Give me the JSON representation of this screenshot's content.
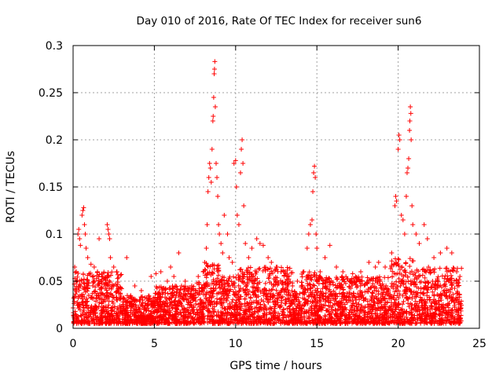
{
  "chart_data": {
    "type": "scatter",
    "title": "Day 010 of 2016, Rate Of TEC Index for receiver sun6",
    "xlabel": "GPS time / hours",
    "ylabel": "ROTI / TECUs",
    "xlim": [
      0,
      25
    ],
    "ylim": [
      0,
      0.3
    ],
    "xticks": [
      0,
      5,
      10,
      15,
      20,
      25
    ],
    "xtick_labels": [
      "0",
      "5",
      "10",
      "15",
      "20",
      "25"
    ],
    "yticks": [
      0,
      0.05,
      0.1,
      0.15,
      0.2,
      0.25,
      0.3
    ],
    "ytick_labels": [
      "0",
      "0.05",
      "0.1",
      "0.15",
      "0.2",
      "0.25",
      "0.3"
    ],
    "grid": true,
    "marker": "+",
    "color": "#ff0000",
    "series": [
      {
        "name": "ROTI",
        "points": [
          [
            0.1,
            0.065
          ],
          [
            0.2,
            0.06
          ],
          [
            0.3,
            0.1
          ],
          [
            0.35,
            0.105
          ],
          [
            0.4,
            0.095
          ],
          [
            0.45,
            0.088
          ],
          [
            0.55,
            0.12
          ],
          [
            0.6,
            0.125
          ],
          [
            0.65,
            0.128
          ],
          [
            0.7,
            0.11
          ],
          [
            0.75,
            0.1
          ],
          [
            0.8,
            0.085
          ],
          [
            0.9,
            0.075
          ],
          [
            1.1,
            0.068
          ],
          [
            1.3,
            0.065
          ],
          [
            1.5,
            0.06
          ],
          [
            1.6,
            0.095
          ],
          [
            1.8,
            0.055
          ],
          [
            2.1,
            0.11
          ],
          [
            2.15,
            0.105
          ],
          [
            2.2,
            0.1
          ],
          [
            2.25,
            0.095
          ],
          [
            2.3,
            0.075
          ],
          [
            2.5,
            0.065
          ],
          [
            2.7,
            0.06
          ],
          [
            3.3,
            0.075
          ],
          [
            3.8,
            0.045
          ],
          [
            4.2,
            0.04
          ],
          [
            4.8,
            0.055
          ],
          [
            5.1,
            0.058
          ],
          [
            5.4,
            0.06
          ],
          [
            5.8,
            0.05
          ],
          [
            6.0,
            0.065
          ],
          [
            6.2,
            0.055
          ],
          [
            6.5,
            0.08
          ],
          [
            6.9,
            0.05
          ],
          [
            7.3,
            0.045
          ],
          [
            7.7,
            0.055
          ],
          [
            8.0,
            0.06
          ],
          [
            8.1,
            0.07
          ],
          [
            8.2,
            0.085
          ],
          [
            8.25,
            0.11
          ],
          [
            8.3,
            0.145
          ],
          [
            8.35,
            0.16
          ],
          [
            8.4,
            0.175
          ],
          [
            8.45,
            0.17
          ],
          [
            8.5,
            0.155
          ],
          [
            8.55,
            0.19
          ],
          [
            8.6,
            0.22
          ],
          [
            8.62,
            0.225
          ],
          [
            8.65,
            0.245
          ],
          [
            8.68,
            0.27
          ],
          [
            8.7,
            0.275
          ],
          [
            8.72,
            0.283
          ],
          [
            8.75,
            0.235
          ],
          [
            8.8,
            0.175
          ],
          [
            8.85,
            0.16
          ],
          [
            8.9,
            0.14
          ],
          [
            8.95,
            0.11
          ],
          [
            9.0,
            0.1
          ],
          [
            9.1,
            0.09
          ],
          [
            9.2,
            0.08
          ],
          [
            9.3,
            0.12
          ],
          [
            9.5,
            0.1
          ],
          [
            9.6,
            0.075
          ],
          [
            9.8,
            0.07
          ],
          [
            9.9,
            0.175
          ],
          [
            10.0,
            0.178
          ],
          [
            10.05,
            0.15
          ],
          [
            10.1,
            0.12
          ],
          [
            10.2,
            0.11
          ],
          [
            10.3,
            0.165
          ],
          [
            10.35,
            0.19
          ],
          [
            10.4,
            0.2
          ],
          [
            10.45,
            0.175
          ],
          [
            10.5,
            0.13
          ],
          [
            10.6,
            0.09
          ],
          [
            10.8,
            0.075
          ],
          [
            11.0,
            0.085
          ],
          [
            11.3,
            0.095
          ],
          [
            11.5,
            0.09
          ],
          [
            11.7,
            0.088
          ],
          [
            12.0,
            0.075
          ],
          [
            12.2,
            0.07
          ],
          [
            12.5,
            0.065
          ],
          [
            12.8,
            0.06
          ],
          [
            13.2,
            0.055
          ],
          [
            13.5,
            0.045
          ],
          [
            13.8,
            0.05
          ],
          [
            14.2,
            0.06
          ],
          [
            14.4,
            0.085
          ],
          [
            14.5,
            0.1
          ],
          [
            14.6,
            0.11
          ],
          [
            14.7,
            0.115
          ],
          [
            14.75,
            0.145
          ],
          [
            14.8,
            0.165
          ],
          [
            14.85,
            0.172
          ],
          [
            14.9,
            0.16
          ],
          [
            14.95,
            0.1
          ],
          [
            15.0,
            0.085
          ],
          [
            15.2,
            0.06
          ],
          [
            15.5,
            0.075
          ],
          [
            15.8,
            0.088
          ],
          [
            16.2,
            0.065
          ],
          [
            16.6,
            0.06
          ],
          [
            17.2,
            0.058
          ],
          [
            17.7,
            0.06
          ],
          [
            18.2,
            0.07
          ],
          [
            18.6,
            0.065
          ],
          [
            18.8,
            0.07
          ],
          [
            19.2,
            0.065
          ],
          [
            19.6,
            0.08
          ],
          [
            19.8,
            0.13
          ],
          [
            19.85,
            0.14
          ],
          [
            19.9,
            0.135
          ],
          [
            20.0,
            0.19
          ],
          [
            20.05,
            0.205
          ],
          [
            20.1,
            0.2
          ],
          [
            20.2,
            0.12
          ],
          [
            20.3,
            0.115
          ],
          [
            20.4,
            0.1
          ],
          [
            20.5,
            0.14
          ],
          [
            20.55,
            0.165
          ],
          [
            20.6,
            0.17
          ],
          [
            20.65,
            0.18
          ],
          [
            20.7,
            0.21
          ],
          [
            20.72,
            0.22
          ],
          [
            20.75,
            0.235
          ],
          [
            20.78,
            0.228
          ],
          [
            20.8,
            0.2
          ],
          [
            20.85,
            0.13
          ],
          [
            20.9,
            0.11
          ],
          [
            21.1,
            0.1
          ],
          [
            21.3,
            0.09
          ],
          [
            21.6,
            0.11
          ],
          [
            21.8,
            0.095
          ],
          [
            22.2,
            0.075
          ],
          [
            22.6,
            0.08
          ],
          [
            23.0,
            0.085
          ],
          [
            23.3,
            0.08
          ],
          [
            23.6,
            0.06
          ],
          [
            23.8,
            0.055
          ]
        ],
        "background_band": {
          "description": "dense band of low ROTI values across the full day",
          "x_range": [
            0,
            23.9
          ],
          "y_base": 0.005,
          "segments": [
            [
              0,
              3,
              0.06
            ],
            [
              3,
              5,
              0.035
            ],
            [
              5,
              7.5,
              0.045
            ],
            [
              7.5,
              8,
              0.05
            ],
            [
              8,
              9,
              0.07
            ],
            [
              9,
              10,
              0.055
            ],
            [
              10,
              13.5,
              0.065
            ],
            [
              13.5,
              14,
              0.04
            ],
            [
              14,
              15,
              0.06
            ],
            [
              15,
              19.5,
              0.055
            ],
            [
              19.5,
              21,
              0.075
            ],
            [
              21,
              23.9,
              0.065
            ]
          ]
        }
      }
    ]
  }
}
